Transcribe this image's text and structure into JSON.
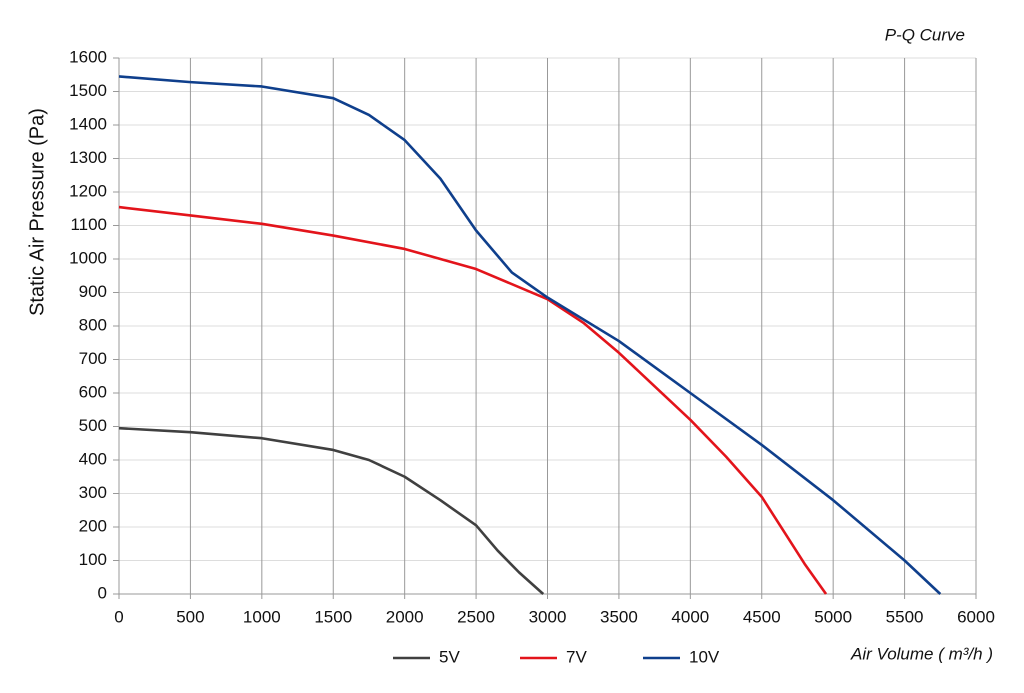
{
  "chart_data": {
    "type": "line",
    "title": "P-Q Curve",
    "y_label": "Static Air Pressure  (Pa)",
    "x_label": "Air Volume ( m³/h )",
    "xlim": [
      0,
      6000
    ],
    "xticks": [
      0,
      500,
      1000,
      1500,
      2000,
      2500,
      3000,
      3500,
      4000,
      4500,
      5000,
      5500,
      6000
    ],
    "ylim": [
      0,
      1600
    ],
    "yticks": [
      0,
      100,
      200,
      300,
      400,
      500,
      600,
      700,
      800,
      900,
      1000,
      1100,
      1200,
      1300,
      1400,
      1500,
      1600
    ],
    "grid": true,
    "legend": "bottom",
    "series": [
      {
        "name": "5V",
        "color": "#404040",
        "x": [
          0,
          500,
          1000,
          1500,
          1750,
          2000,
          2250,
          2500,
          2650,
          2800,
          2970
        ],
        "values": [
          495,
          483,
          465,
          430,
          400,
          350,
          280,
          205,
          130,
          65,
          0
        ]
      },
      {
        "name": "7V",
        "color": "#e3141b",
        "x": [
          0,
          500,
          1000,
          1500,
          2000,
          2500,
          3000,
          3250,
          3500,
          3750,
          4000,
          4250,
          4500,
          4650,
          4800,
          4950
        ],
        "values": [
          1155,
          1130,
          1105,
          1070,
          1030,
          970,
          880,
          810,
          720,
          620,
          520,
          410,
          290,
          190,
          90,
          0
        ]
      },
      {
        "name": "10V",
        "color": "#0f3f8c",
        "x": [
          0,
          500,
          1000,
          1500,
          1750,
          2000,
          2250,
          2500,
          2750,
          3000,
          3500,
          4000,
          4500,
          5000,
          5500,
          5750
        ],
        "values": [
          1545,
          1528,
          1515,
          1480,
          1430,
          1355,
          1240,
          1085,
          960,
          885,
          755,
          600,
          445,
          280,
          100,
          0
        ]
      }
    ]
  }
}
